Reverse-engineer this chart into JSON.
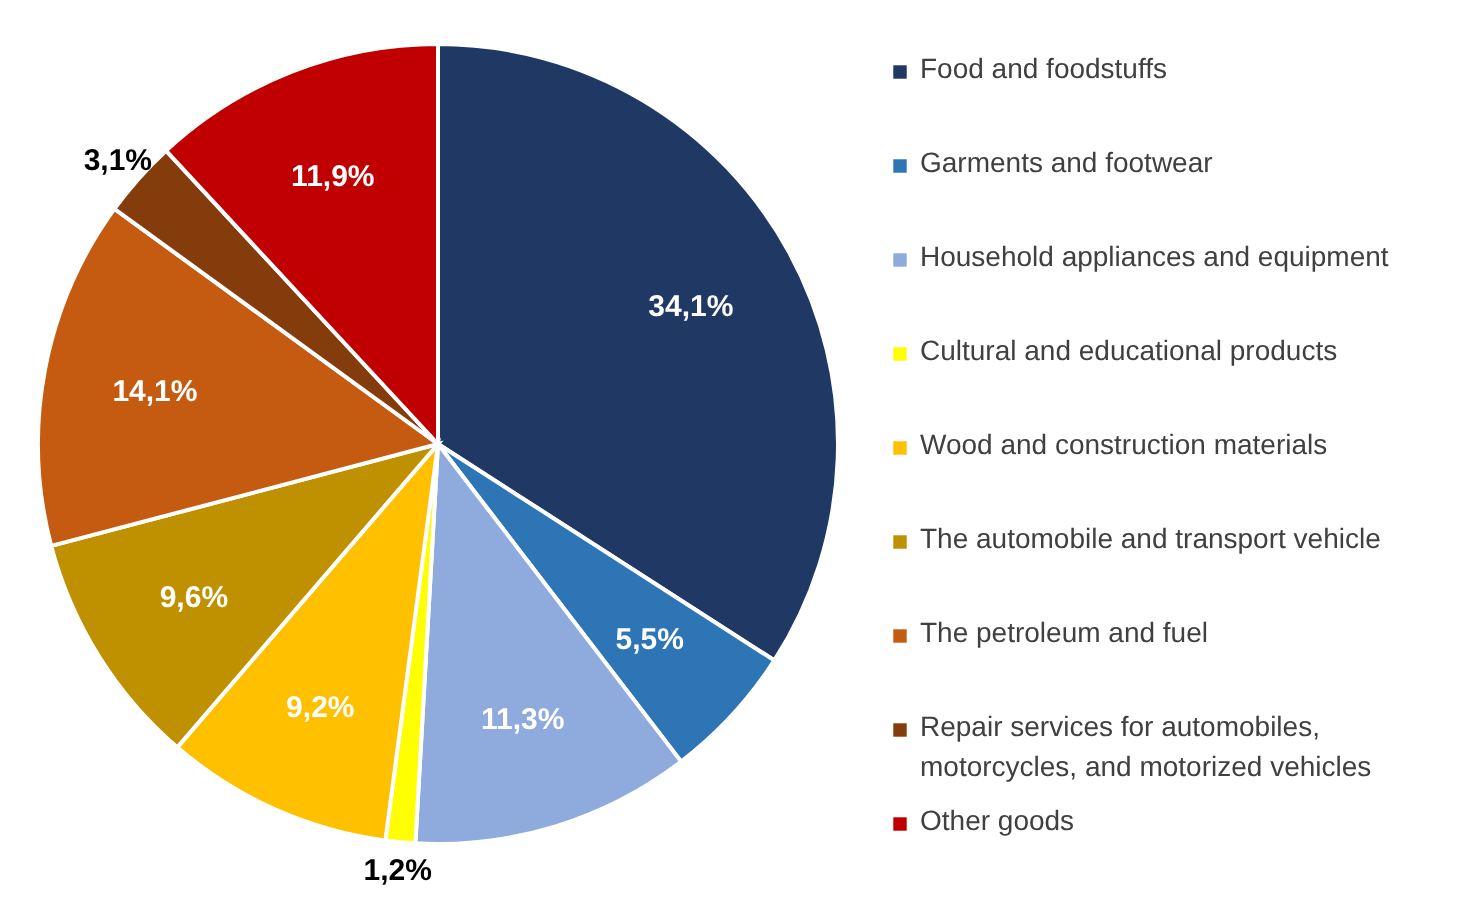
{
  "chart_data": {
    "type": "pie",
    "categories": [
      "Food and foodstuffs",
      "Garments and footwear",
      "Household appliances and equipment",
      "Cultural and educational products",
      "Wood and construction materials",
      "The automobile and transport vehicle",
      "The petroleum and fuel",
      "Repair services for automobiles, motorcycles, and motorized vehicles",
      "Other goods"
    ],
    "values": [
      34.1,
      5.5,
      11.3,
      1.2,
      9.2,
      9.6,
      14.1,
      3.1,
      11.9
    ],
    "colors": [
      "#1f3864",
      "#2e75b6",
      "#8faadc",
      "#ffff00",
      "#ffc000",
      "#bf9000",
      "#c55a11",
      "#843c0c",
      "#c00000"
    ],
    "value_labels": [
      "34,1%",
      "5,5%",
      "11,3%",
      "1,2%",
      "9,2%",
      "9,6%",
      "14,1%",
      "3,1%",
      "11,9%"
    ],
    "legend": "right"
  }
}
